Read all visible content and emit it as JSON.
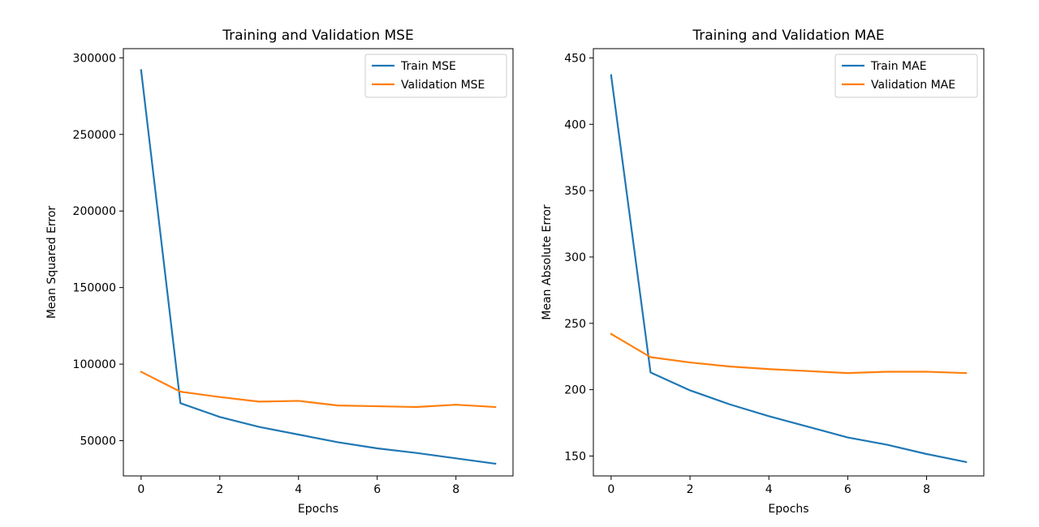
{
  "chart_data": [
    {
      "type": "line",
      "title": "Training and Validation MSE",
      "xlabel": "Epochs",
      "ylabel": "Mean Squared Error",
      "xlim": [
        -0.45,
        9.45
      ],
      "ylim": [
        27000,
        306000
      ],
      "x_ticks": [
        0,
        2,
        4,
        6,
        8
      ],
      "y_ticks": [
        50000,
        100000,
        150000,
        200000,
        250000,
        300000
      ],
      "grid": false,
      "legend_position": "top-right",
      "x": [
        0,
        1,
        2,
        3,
        4,
        5,
        6,
        7,
        8,
        9
      ],
      "series": [
        {
          "name": "Train MSE",
          "color": "#1f77b4",
          "values": [
            292000,
            74500,
            65500,
            59000,
            54000,
            49000,
            45000,
            42000,
            38500,
            35000
          ]
        },
        {
          "name": "Validation MSE",
          "color": "#ff7f0e",
          "values": [
            95000,
            82000,
            78500,
            75500,
            76000,
            73000,
            72500,
            72000,
            73500,
            72000
          ]
        }
      ]
    },
    {
      "type": "line",
      "title": "Training and Validation MAE",
      "xlabel": "Epochs",
      "ylabel": "Mean Absolute Error",
      "xlim": [
        -0.45,
        9.45
      ],
      "ylim": [
        135,
        457
      ],
      "x_ticks": [
        0,
        2,
        4,
        6,
        8
      ],
      "y_ticks": [
        150,
        200,
        250,
        300,
        350,
        400,
        450
      ],
      "grid": false,
      "legend_position": "top-right",
      "x": [
        0,
        1,
        2,
        3,
        4,
        5,
        6,
        7,
        8,
        9
      ],
      "series": [
        {
          "name": "Train MAE",
          "color": "#1f77b4",
          "values": [
            437,
            213,
            199.5,
            189,
            180,
            172,
            164,
            158.5,
            151.5,
            145.5
          ]
        },
        {
          "name": "Validation MAE",
          "color": "#ff7f0e",
          "values": [
            242,
            224.5,
            220.5,
            217.5,
            215.5,
            214,
            212.5,
            213.5,
            213.5,
            212.5
          ]
        }
      ]
    }
  ]
}
